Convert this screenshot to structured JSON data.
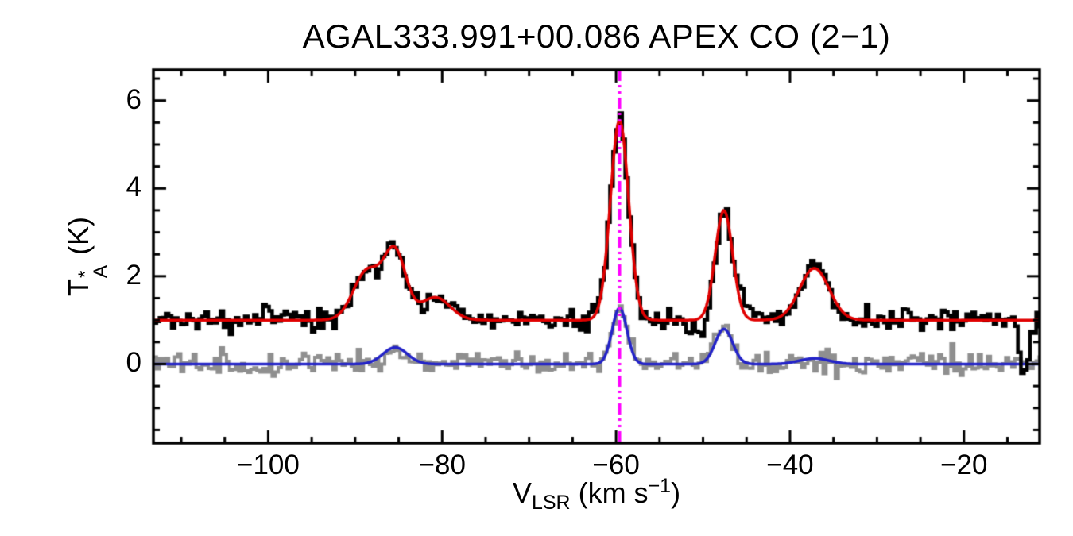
{
  "chart_data": {
    "type": "line",
    "title": "AGAL333.991+00.086  APEX CO (2−1)",
    "xlabel": "V_LSR (km s−1)",
    "ylabel": "T_A* (K)",
    "xlabel_parts": {
      "base": "V",
      "sub": "LSR",
      "mid": " (km s",
      "sup": "−1",
      "end": ")"
    },
    "ylabel_parts": {
      "base": "T",
      "sup": "*",
      "sub": "A",
      "end": " (K)"
    },
    "xlim": [
      -113.2,
      -11.3
    ],
    "ylim": [
      -1.8,
      6.7
    ],
    "grid": false,
    "legend": "none",
    "xticks": {
      "major": [
        -100,
        -80,
        -60,
        -40,
        -20
      ],
      "labels": [
        "−100",
        "−80",
        "−60",
        "−40",
        "−20"
      ],
      "minor_step": 5
    },
    "yticks": {
      "major": [
        0,
        2,
        4,
        6
      ],
      "labels": [
        "0",
        "2",
        "4",
        "6"
      ],
      "minor_step": 0.5
    },
    "series": [
      {
        "name": "observed-spectrum-secondary",
        "color": "#8f8f8f",
        "style": "histogram",
        "width": 4,
        "baseline": 0.0,
        "noise_sigma": 0.13,
        "channel_width": 0.35,
        "seed": 77,
        "gaussians": [
          {
            "center": -85.4,
            "amp": 0.38,
            "sigma": 1.4
          },
          {
            "center": -59.6,
            "amp": 1.28,
            "sigma": 0.85
          },
          {
            "center": -47.6,
            "amp": 0.8,
            "sigma": 1.0
          },
          {
            "center": -37.2,
            "amp": 0.13,
            "sigma": 1.7
          }
        ]
      },
      {
        "name": "gaussian-fit-secondary",
        "color": "#2323c8",
        "style": "smooth",
        "width": 3.5,
        "baseline": 0.0,
        "gaussians": [
          {
            "center": -85.4,
            "amp": 0.38,
            "sigma": 1.4
          },
          {
            "center": -59.6,
            "amp": 1.28,
            "sigma": 0.85
          },
          {
            "center": -47.6,
            "amp": 0.8,
            "sigma": 1.0
          },
          {
            "center": -37.2,
            "amp": 0.13,
            "sigma": 1.7
          }
        ]
      },
      {
        "name": "observed-spectrum-main",
        "color": "#000000",
        "style": "histogram",
        "width": 4.5,
        "baseline": 1.0,
        "noise_sigma": 0.115,
        "channel_width": 0.35,
        "seed": 20,
        "gaussians": [
          {
            "center": -100.15,
            "amp": 0.55,
            "sigma": 0.3
          },
          {
            "center": -88.6,
            "amp": 1.12,
            "sigma": 1.6
          },
          {
            "center": -85.4,
            "amp": 1.5,
            "sigma": 1.25
          },
          {
            "center": -80.8,
            "amp": 0.52,
            "sigma": 1.7
          },
          {
            "center": -59.6,
            "amp": 4.55,
            "sigma": 1.05
          },
          {
            "center": -50.3,
            "amp": -0.35,
            "sigma": 1.2
          },
          {
            "center": -47.6,
            "amp": 2.5,
            "sigma": 1.0
          },
          {
            "center": -44.8,
            "amp": 0.35,
            "sigma": 1.0
          },
          {
            "center": -37.2,
            "amp": 1.18,
            "sigma": 1.7
          },
          {
            "center": -13.1,
            "amp": -1.2,
            "sigma": 0.55
          }
        ]
      },
      {
        "name": "gaussian-fit-main",
        "color": "#e00000",
        "style": "smooth",
        "width": 3.5,
        "baseline": 1.0,
        "gaussians": [
          {
            "center": -88.6,
            "amp": 1.12,
            "sigma": 1.6
          },
          {
            "center": -85.4,
            "amp": 1.5,
            "sigma": 1.25
          },
          {
            "center": -80.8,
            "amp": 0.52,
            "sigma": 1.7
          },
          {
            "center": -59.6,
            "amp": 4.55,
            "sigma": 1.05
          },
          {
            "center": -47.6,
            "amp": 2.5,
            "sigma": 1.0
          },
          {
            "center": -37.2,
            "amp": 1.18,
            "sigma": 1.7
          }
        ]
      }
    ],
    "vline": {
      "x": -59.6,
      "color": "#ff00ff",
      "width": 4,
      "dash": [
        14,
        5,
        3,
        5,
        3,
        5
      ]
    }
  }
}
